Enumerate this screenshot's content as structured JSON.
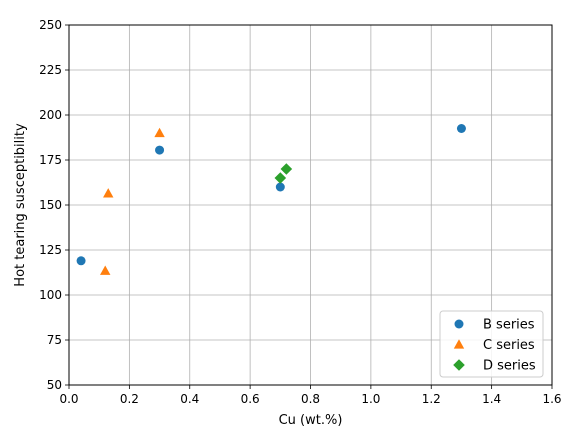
{
  "chart_data": {
    "type": "scatter",
    "title": "",
    "xlabel": "Cu (wt.%)",
    "ylabel": "Hot tearing susceptibility",
    "xlim": [
      0.0,
      1.6
    ],
    "ylim": [
      50,
      250
    ],
    "xticks": [
      0.0,
      0.2,
      0.4,
      0.6,
      0.8,
      1.0,
      1.2,
      1.4,
      1.6
    ],
    "xtick_labels": [
      "0.0",
      "0.2",
      "0.4",
      "0.6",
      "0.8",
      "1.0",
      "1.2",
      "1.4",
      "1.6"
    ],
    "yticks": [
      50,
      75,
      100,
      125,
      150,
      175,
      200,
      225,
      250
    ],
    "ytick_labels": [
      "50",
      "75",
      "100",
      "125",
      "150",
      "175",
      "200",
      "225",
      "250"
    ],
    "grid": true,
    "legend_position": "lower-right",
    "series": [
      {
        "name": "B series",
        "marker": "circle",
        "color": "#1f77b4",
        "points": [
          {
            "x": 0.04,
            "y": 119
          },
          {
            "x": 0.3,
            "y": 180.5
          },
          {
            "x": 0.7,
            "y": 160
          },
          {
            "x": 1.3,
            "y": 192.5
          }
        ]
      },
      {
        "name": "C series",
        "marker": "triangle",
        "color": "#ff7f0e",
        "points": [
          {
            "x": 0.12,
            "y": 113.5
          },
          {
            "x": 0.13,
            "y": 156.5
          },
          {
            "x": 0.3,
            "y": 190
          }
        ]
      },
      {
        "name": "D series",
        "marker": "diamond",
        "color": "#2ca02c",
        "points": [
          {
            "x": 0.7,
            "y": 165
          },
          {
            "x": 0.72,
            "y": 170
          }
        ]
      }
    ]
  }
}
